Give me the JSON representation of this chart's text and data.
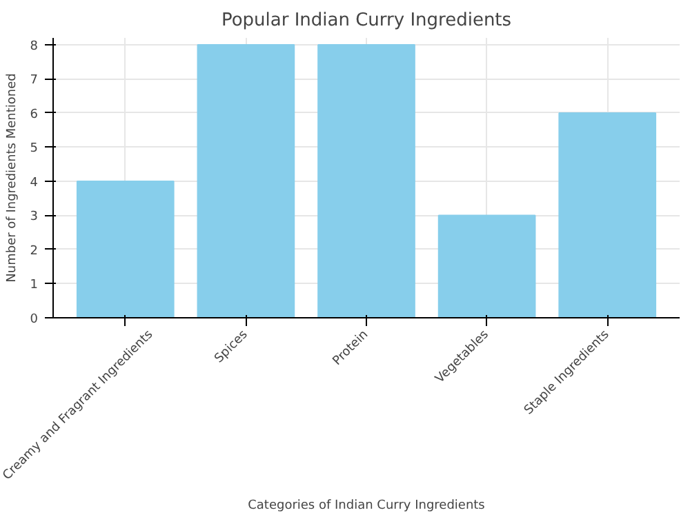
{
  "chart_data": {
    "type": "bar",
    "title": "Popular Indian Curry Ingredients",
    "xlabel": "Categories of Indian Curry Ingredients",
    "ylabel": "Number of Ingredients Mentioned",
    "categories": [
      "Creamy and Fragrant Ingredients",
      "Spices",
      "Protein",
      "Vegetables",
      "Staple Ingredients"
    ],
    "values": [
      4,
      8,
      8,
      3,
      6
    ],
    "color": "#87ceeb",
    "ylim": [
      0,
      8.2
    ],
    "yticks": [
      0,
      1,
      2,
      3,
      4,
      5,
      6,
      7,
      8
    ],
    "grid": true
  }
}
